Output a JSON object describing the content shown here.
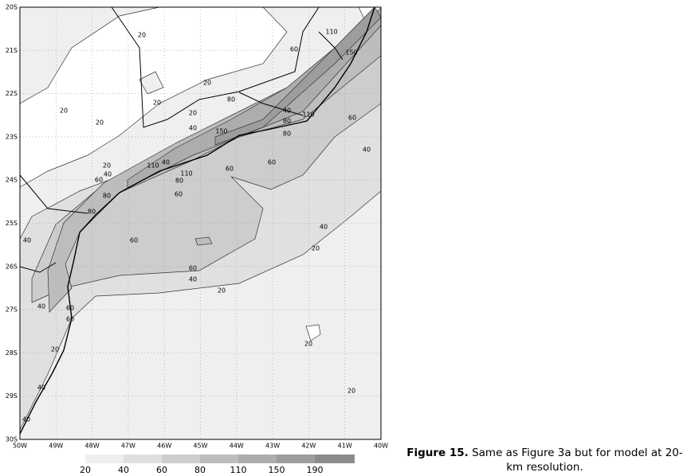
{
  "map": {
    "lat_labels": [
      "20S",
      "21S",
      "22S",
      "23S",
      "24S",
      "25S",
      "26S",
      "27S",
      "28S",
      "29S",
      "30S"
    ],
    "lon_labels": [
      "50W",
      "49W",
      "48W",
      "47W",
      "46W",
      "45W",
      "44W",
      "43W",
      "42W",
      "41W",
      "40W"
    ],
    "contour_labels": [
      20,
      20,
      20,
      20,
      20,
      20,
      80,
      40,
      110,
      80,
      80,
      60,
      110,
      150,
      60,
      40,
      150,
      60,
      60,
      40,
      20,
      40,
      110,
      110,
      40,
      60,
      80,
      60,
      80,
      80,
      40,
      60,
      40,
      20,
      60,
      40,
      20,
      40,
      60,
      60,
      20,
      40,
      40,
      20,
      20
    ],
    "colorbar": {
      "levels": [
        20,
        40,
        60,
        80,
        110,
        150,
        190
      ],
      "colors": [
        "#efefef",
        "#e0e0e0",
        "#cdcdcd",
        "#bdbdbd",
        "#adadad",
        "#9d9d9d",
        "#8c8c8c"
      ]
    }
  },
  "caption": {
    "label": "Figure 15.",
    "text": "Same as Figure 3a but for model at 20-km resolution."
  }
}
